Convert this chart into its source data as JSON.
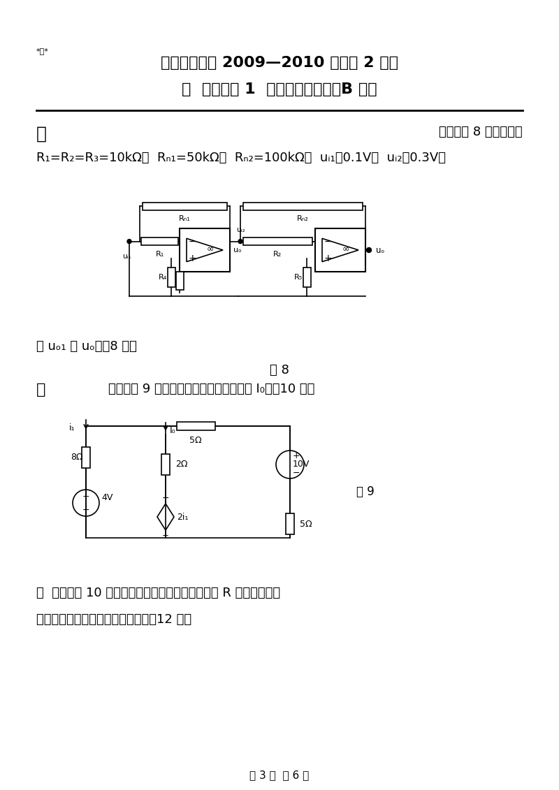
{
  "bg_color": "#ffffff",
  "watermark": "*密*",
  "title1": "西南科技大学 2009—2010 学年第 2 学期",
  "title2": "《  电路分析 1  》期末考试试卷（B 卷）",
  "sec8_left": "八",
  "sec8_right": "电路如图 8 所示。已知",
  "sec8_params": "R₁=R₂=R₃=10kΩ，  Rₜ₁=50kΩ，  Rₜ₂=100kΩ，  uᵢ₁＝0.1V，  uᵢ₂＝0.3V。",
  "sec8_ask": "求 uₒ₁ 和 uₒ。（8 分）",
  "fig8": "图 8",
  "sec9_left": "九",
  "sec9_text": "电路如图 9 所示。利用叠加定理，求电流 I₀。（10 分）",
  "fig9": "图 9",
  "sec10_label": "十",
  "sec10_text1": "电路如图 10 所示。利用戴维南定理，分析电阻 R 在什么条件下",
  "sec10_text2": "能获得最大功率？并求最大功率。（12 分）",
  "footer": "第 3 页  共 6 页"
}
